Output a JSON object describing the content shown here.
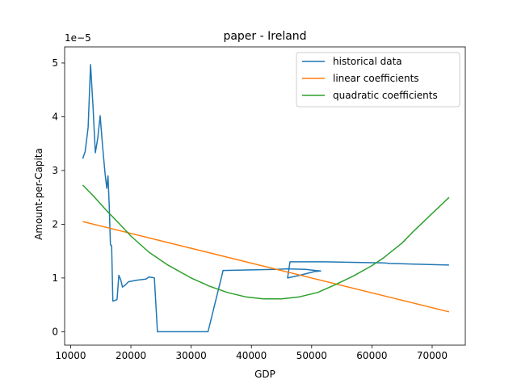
{
  "chart_data": {
    "type": "line",
    "title": "paper - Ireland",
    "xlabel": "GDP",
    "ylabel": "Amount-per-Capita",
    "y_multiplier_label": "1e−5",
    "xlim": [
      9000,
      75500
    ],
    "ylim": [
      -0.25,
      5.3
    ],
    "x_ticks": [
      10000,
      20000,
      30000,
      40000,
      50000,
      60000,
      70000
    ],
    "y_ticks": [
      0,
      1,
      2,
      3,
      4,
      5
    ],
    "legend_position": "upper-right",
    "grid": false,
    "series": [
      {
        "name": "historical data",
        "color": "#1f77b4",
        "points": [
          [
            12000,
            3.22
          ],
          [
            12400,
            3.35
          ],
          [
            12900,
            3.8
          ],
          [
            13300,
            4.97
          ],
          [
            13700,
            4.2
          ],
          [
            14100,
            3.33
          ],
          [
            14500,
            3.6
          ],
          [
            14900,
            4.02
          ],
          [
            15300,
            3.45
          ],
          [
            15700,
            2.95
          ],
          [
            16000,
            2.67
          ],
          [
            16200,
            2.9
          ],
          [
            16400,
            2.35
          ],
          [
            16600,
            1.62
          ],
          [
            16800,
            1.6
          ],
          [
            17000,
            0.57
          ],
          [
            17300,
            0.58
          ],
          [
            17700,
            0.6
          ],
          [
            18000,
            1.05
          ],
          [
            18300,
            0.97
          ],
          [
            18600,
            0.83
          ],
          [
            19100,
            0.87
          ],
          [
            19600,
            0.93
          ],
          [
            21000,
            0.96
          ],
          [
            22500,
            0.98
          ],
          [
            23000,
            1.02
          ],
          [
            23500,
            1.01
          ],
          [
            23900,
            1.0
          ],
          [
            24400,
            0.0
          ],
          [
            28000,
            0.0
          ],
          [
            32800,
            0.0
          ],
          [
            35300,
            1.14
          ],
          [
            44000,
            1.16
          ],
          [
            46000,
            1.17
          ],
          [
            49000,
            1.16
          ],
          [
            51500,
            1.13
          ],
          [
            50500,
            1.12
          ],
          [
            48000,
            1.05
          ],
          [
            46000,
            1.0
          ],
          [
            46400,
            1.3
          ],
          [
            52000,
            1.3
          ],
          [
            62000,
            1.28
          ],
          [
            63000,
            1.27
          ],
          [
            72800,
            1.24
          ]
        ]
      },
      {
        "name": "linear coefficients",
        "color": "#ff7f0e",
        "points": [
          [
            12000,
            2.05
          ],
          [
            72800,
            0.37
          ]
        ]
      },
      {
        "name": "quadratic coefficients",
        "color": "#2ca02c",
        "points": [
          [
            12000,
            2.73
          ],
          [
            14000,
            2.5
          ],
          [
            16000,
            2.25
          ],
          [
            18000,
            2.02
          ],
          [
            20000,
            1.78
          ],
          [
            23000,
            1.48
          ],
          [
            26000,
            1.25
          ],
          [
            30000,
            1.0
          ],
          [
            33000,
            0.85
          ],
          [
            36000,
            0.73
          ],
          [
            39000,
            0.65
          ],
          [
            42000,
            0.61
          ],
          [
            45000,
            0.61
          ],
          [
            48000,
            0.65
          ],
          [
            51000,
            0.73
          ],
          [
            54000,
            0.88
          ],
          [
            57000,
            1.04
          ],
          [
            60000,
            1.23
          ],
          [
            62000,
            1.38
          ],
          [
            65000,
            1.65
          ],
          [
            67000,
            1.88
          ],
          [
            70000,
            2.2
          ],
          [
            72800,
            2.5
          ]
        ]
      }
    ]
  }
}
